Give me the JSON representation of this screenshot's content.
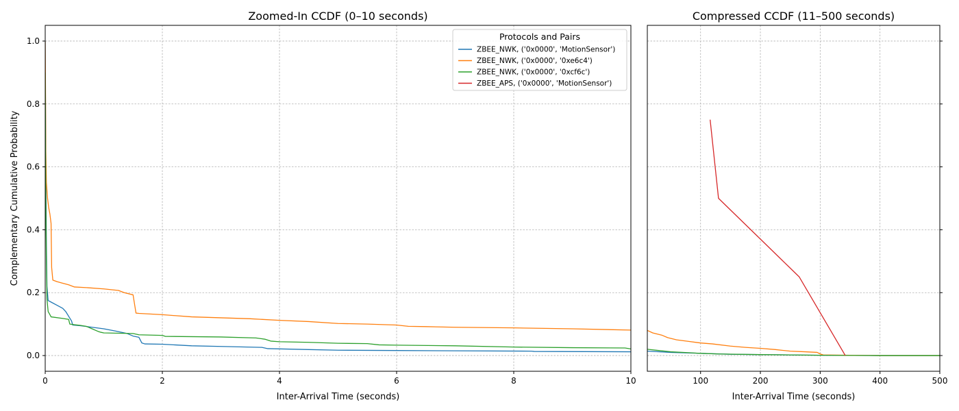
{
  "chart_data": [
    {
      "type": "line",
      "title": "Zoomed-In CCDF (0–10 seconds)",
      "xlabel": "Inter-Arrival Time (seconds)",
      "ylabel": "Complementary Cumulative Probability",
      "xlim": [
        0,
        10
      ],
      "ylim": [
        -0.05,
        1.05
      ],
      "xticks": [
        "0",
        "2",
        "4",
        "6",
        "8",
        "10"
      ],
      "yticks": [
        "0.0",
        "0.2",
        "0.4",
        "0.6",
        "0.8",
        "1.0"
      ],
      "grid": true,
      "legend": {
        "title": "Protocols and Pairs",
        "placement": "top-right",
        "entries": [
          "ZBEE_NWK, ('0x0000', 'MotionSensor')",
          "ZBEE_NWK, ('0x0000', '0xe6c4')",
          "ZBEE_NWK, ('0x0000', '0xcf6c')",
          "ZBEE_APS, ('0x0000', 'MotionSensor')"
        ]
      },
      "series": [
        {
          "name": "ZBEE_NWK, ('0x0000', 'MotionSensor')",
          "color": "#1f77b4",
          "points": [
            [
              0,
              1.0
            ],
            [
              0.01,
              0.6
            ],
            [
              0.02,
              0.35
            ],
            [
              0.03,
              0.22
            ],
            [
              0.05,
              0.175
            ],
            [
              0.1,
              0.17
            ],
            [
              0.2,
              0.16
            ],
            [
              0.3,
              0.15
            ],
            [
              0.35,
              0.14
            ],
            [
              0.4,
              0.125
            ],
            [
              0.45,
              0.11
            ],
            [
              0.47,
              0.097
            ],
            [
              0.6,
              0.095
            ],
            [
              0.8,
              0.09
            ],
            [
              1.0,
              0.085
            ],
            [
              1.2,
              0.078
            ],
            [
              1.4,
              0.07
            ],
            [
              1.5,
              0.062
            ],
            [
              1.6,
              0.058
            ],
            [
              1.65,
              0.04
            ],
            [
              1.7,
              0.037
            ],
            [
              2.0,
              0.036
            ],
            [
              2.5,
              0.031
            ],
            [
              3.0,
              0.029
            ],
            [
              3.7,
              0.026
            ],
            [
              3.8,
              0.022
            ],
            [
              4.5,
              0.019
            ],
            [
              5.0,
              0.017
            ],
            [
              6.0,
              0.016
            ],
            [
              7.0,
              0.015
            ],
            [
              8.3,
              0.014
            ],
            [
              8.35,
              0.013
            ],
            [
              10.0,
              0.012
            ]
          ]
        },
        {
          "name": "ZBEE_NWK, ('0x0000', '0xe6c4')",
          "color": "#ff7f0e",
          "points": [
            [
              0,
              1.0
            ],
            [
              0.005,
              0.85
            ],
            [
              0.01,
              0.65
            ],
            [
              0.02,
              0.55
            ],
            [
              0.04,
              0.5
            ],
            [
              0.06,
              0.47
            ],
            [
              0.08,
              0.45
            ],
            [
              0.1,
              0.42
            ],
            [
              0.11,
              0.28
            ],
            [
              0.13,
              0.24
            ],
            [
              0.2,
              0.235
            ],
            [
              0.3,
              0.23
            ],
            [
              0.4,
              0.225
            ],
            [
              0.5,
              0.218
            ],
            [
              0.7,
              0.216
            ],
            [
              1.0,
              0.212
            ],
            [
              1.25,
              0.207
            ],
            [
              1.35,
              0.2
            ],
            [
              1.5,
              0.193
            ],
            [
              1.55,
              0.135
            ],
            [
              1.6,
              0.134
            ],
            [
              2.0,
              0.13
            ],
            [
              2.5,
              0.123
            ],
            [
              3.0,
              0.12
            ],
            [
              3.5,
              0.117
            ],
            [
              4.0,
              0.112
            ],
            [
              4.5,
              0.108
            ],
            [
              5.0,
              0.102
            ],
            [
              5.5,
              0.1
            ],
            [
              6.0,
              0.097
            ],
            [
              6.2,
              0.093
            ],
            [
              6.5,
              0.092
            ],
            [
              7.0,
              0.09
            ],
            [
              8.0,
              0.088
            ],
            [
              9.0,
              0.085
            ],
            [
              10.0,
              0.081
            ]
          ]
        },
        {
          "name": "ZBEE_NWK, ('0x0000', '0xcf6c')",
          "color": "#2ca02c",
          "points": [
            [
              0,
              0.9
            ],
            [
              0.01,
              0.5
            ],
            [
              0.02,
              0.3
            ],
            [
              0.03,
              0.18
            ],
            [
              0.05,
              0.14
            ],
            [
              0.08,
              0.13
            ],
            [
              0.1,
              0.123
            ],
            [
              0.3,
              0.118
            ],
            [
              0.4,
              0.115
            ],
            [
              0.42,
              0.1
            ],
            [
              0.5,
              0.098
            ],
            [
              0.6,
              0.096
            ],
            [
              0.7,
              0.093
            ],
            [
              0.8,
              0.085
            ],
            [
              0.9,
              0.077
            ],
            [
              0.95,
              0.074
            ],
            [
              1.0,
              0.072
            ],
            [
              1.5,
              0.07
            ],
            [
              1.6,
              0.066
            ],
            [
              2.0,
              0.064
            ],
            [
              2.05,
              0.061
            ],
            [
              3.0,
              0.059
            ],
            [
              3.6,
              0.056
            ],
            [
              3.75,
              0.052
            ],
            [
              3.85,
              0.046
            ],
            [
              4.0,
              0.044
            ],
            [
              4.5,
              0.042
            ],
            [
              5.0,
              0.039
            ],
            [
              5.5,
              0.038
            ],
            [
              5.7,
              0.034
            ],
            [
              6.0,
              0.033
            ],
            [
              7.0,
              0.031
            ],
            [
              8.0,
              0.027
            ],
            [
              9.0,
              0.025
            ],
            [
              9.9,
              0.024
            ],
            [
              10.0,
              0.021
            ]
          ]
        }
      ]
    },
    {
      "type": "line",
      "title": "Compressed CCDF (11–500 seconds)",
      "xlabel": "Inter-Arrival Time (seconds)",
      "xlim": [
        11,
        500
      ],
      "ylim": [
        -0.05,
        1.05
      ],
      "xticks": [
        "100",
        "200",
        "300",
        "400",
        "500"
      ],
      "grid": true,
      "series": [
        {
          "name": "ZBEE_NWK, ('0x0000', 'MotionSensor')",
          "color": "#1f77b4",
          "points": [
            [
              11,
              0.014
            ],
            [
              50,
              0.01
            ],
            [
              100,
              0.007
            ],
            [
              150,
              0.004
            ],
            [
              200,
              0.003
            ],
            [
              250,
              0.002
            ],
            [
              300,
              0.001
            ],
            [
              400,
              0.0
            ],
            [
              500,
              0.0
            ]
          ]
        },
        {
          "name": "ZBEE_NWK, ('0x0000', '0xe6c4')",
          "color": "#ff7f0e",
          "points": [
            [
              11,
              0.08
            ],
            [
              20,
              0.072
            ],
            [
              35,
              0.065
            ],
            [
              45,
              0.057
            ],
            [
              60,
              0.05
            ],
            [
              80,
              0.045
            ],
            [
              100,
              0.04
            ],
            [
              120,
              0.037
            ],
            [
              150,
              0.03
            ],
            [
              175,
              0.026
            ],
            [
              200,
              0.023
            ],
            [
              225,
              0.019
            ],
            [
              250,
              0.014
            ],
            [
              275,
              0.012
            ],
            [
              295,
              0.01
            ],
            [
              300,
              0.005
            ],
            [
              305,
              0.002
            ],
            [
              350,
              0.001
            ],
            [
              400,
              0.0
            ],
            [
              500,
              0.0
            ]
          ]
        },
        {
          "name": "ZBEE_NWK, ('0x0000', '0xcf6c')",
          "color": "#2ca02c",
          "points": [
            [
              11,
              0.02
            ],
            [
              30,
              0.016
            ],
            [
              50,
              0.012
            ],
            [
              80,
              0.009
            ],
            [
              100,
              0.007
            ],
            [
              130,
              0.005
            ],
            [
              200,
              0.003
            ],
            [
              300,
              0.001
            ],
            [
              400,
              0.0
            ],
            [
              500,
              0.0
            ]
          ]
        },
        {
          "name": "ZBEE_APS, ('0x0000', 'MotionSensor')",
          "color": "#d62728",
          "points": [
            [
              116,
              0.75
            ],
            [
              130,
              0.5
            ],
            [
              265,
              0.25
            ],
            [
              342,
              0.0
            ]
          ]
        }
      ]
    }
  ]
}
